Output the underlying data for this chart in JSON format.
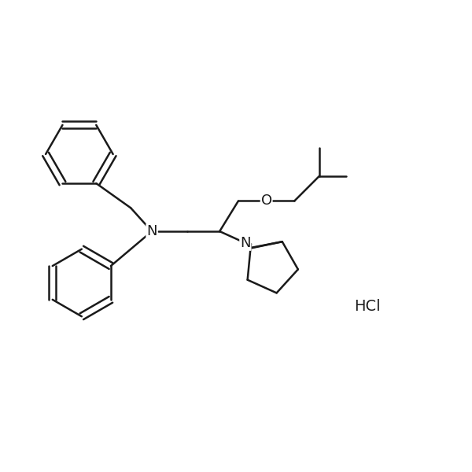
{
  "background_color": "#ffffff",
  "line_color": "#1a1a1a",
  "line_width": 1.8,
  "font_size": 13,
  "figsize": [
    6.0,
    6.0
  ],
  "dpi": 100,
  "xlim": [
    0,
    10
  ],
  "ylim": [
    0,
    10
  ],
  "hcl_x": 7.8,
  "hcl_y": 3.5
}
